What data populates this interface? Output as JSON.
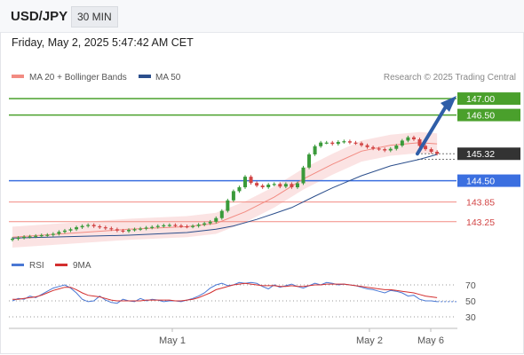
{
  "header": {
    "symbol": "USD/JPY",
    "timeframe": "30 MIN"
  },
  "timestamp": "Friday, May 2, 2025 5:47:42 AM CET",
  "legend": {
    "ma20": {
      "label": "MA 20 + Bollinger Bands",
      "color": "#f28b82"
    },
    "ma50": {
      "label": "MA 50",
      "color": "#2c4f8c"
    }
  },
  "source": "Research © 2025 Trading Central",
  "colors": {
    "up": "#3a9a3a",
    "down": "#d24545",
    "resistance": "#4aa02c",
    "support": "#3b6fe0",
    "pivot": "#f28b82",
    "rsi": "#4a78d4",
    "ma9": "#d32f2f",
    "band": "#fadcdc"
  },
  "chart_data": [
    {
      "type": "candlestick",
      "symbol": "USD/JPY",
      "ylim": [
        142.65,
        147.3
      ],
      "levels": [
        {
          "label": "147.00",
          "value": 147.0,
          "kind": "resistance"
        },
        {
          "label": "146.50",
          "value": 146.5,
          "kind": "resistance"
        },
        {
          "label": "144.50",
          "value": 144.5,
          "kind": "support"
        },
        {
          "label": "143.85",
          "value": 143.85,
          "kind": "pivot"
        },
        {
          "label": "143.25",
          "value": 143.25,
          "kind": "pivot"
        }
      ],
      "last_price": {
        "label": "145.32",
        "value": 145.32
      },
      "closes": [
        142.73,
        142.76,
        142.79,
        142.8,
        142.82,
        142.84,
        142.85,
        142.88,
        142.94,
        142.98,
        143.02,
        143.08,
        143.12,
        143.15,
        143.11,
        143.08,
        143.05,
        143.02,
        142.98,
        142.96,
        143.0,
        143.02,
        143.04,
        143.07,
        143.09,
        143.12,
        143.14,
        143.15,
        143.13,
        143.11,
        143.1,
        143.12,
        143.16,
        143.2,
        143.25,
        143.36,
        143.58,
        143.9,
        144.18,
        144.3,
        144.62,
        144.43,
        144.35,
        144.3,
        144.38,
        144.4,
        144.32,
        144.4,
        144.3,
        144.42,
        144.9,
        145.3,
        145.55,
        145.66,
        145.66,
        145.62,
        145.68,
        145.7,
        145.66,
        145.64,
        145.58,
        145.52,
        145.48,
        145.46,
        145.42,
        145.47,
        145.57,
        145.72,
        145.82,
        145.76,
        145.56,
        145.46,
        145.38,
        145.32
      ],
      "opens": [
        142.7,
        142.73,
        142.76,
        142.79,
        142.8,
        142.82,
        142.84,
        142.85,
        142.88,
        142.94,
        142.98,
        143.02,
        143.08,
        143.12,
        143.15,
        143.11,
        143.08,
        143.05,
        143.02,
        142.98,
        142.96,
        143.0,
        143.02,
        143.04,
        143.07,
        143.09,
        143.12,
        143.14,
        143.15,
        143.13,
        143.11,
        143.1,
        143.12,
        143.16,
        143.2,
        143.25,
        143.36,
        143.58,
        143.9,
        144.18,
        144.3,
        144.62,
        144.43,
        144.35,
        144.3,
        144.38,
        144.4,
        144.32,
        144.4,
        144.3,
        144.42,
        144.9,
        145.3,
        145.55,
        145.66,
        145.66,
        145.62,
        145.68,
        145.7,
        145.66,
        145.64,
        145.58,
        145.52,
        145.48,
        145.46,
        145.42,
        145.47,
        145.57,
        145.72,
        145.82,
        145.76,
        145.56,
        145.46,
        145.38
      ],
      "ma50_path": [
        [
          0,
          142.75
        ],
        [
          20,
          142.84
        ],
        [
          30,
          142.92
        ],
        [
          35,
          143.02
        ],
        [
          38,
          143.12
        ],
        [
          42,
          143.32
        ],
        [
          45,
          143.5
        ],
        [
          48,
          143.68
        ],
        [
          52,
          144.03
        ],
        [
          55,
          144.28
        ],
        [
          60,
          144.65
        ],
        [
          65,
          144.95
        ],
        [
          70,
          145.15
        ],
        [
          73,
          145.3
        ]
      ],
      "ma20_path": [
        [
          0,
          142.78
        ],
        [
          20,
          143.02
        ],
        [
          30,
          143.1
        ],
        [
          35,
          143.2
        ],
        [
          40,
          143.55
        ],
        [
          45,
          144.0
        ],
        [
          50,
          144.55
        ],
        [
          55,
          145.0
        ],
        [
          60,
          145.4
        ],
        [
          65,
          145.58
        ],
        [
          70,
          145.66
        ],
        [
          73,
          145.62
        ]
      ]
    },
    {
      "type": "line",
      "series": [
        {
          "name": "RSI"
        },
        {
          "name": "9MA"
        }
      ],
      "ylim": [
        20,
        80
      ],
      "yticks": [
        "70",
        "50",
        "30"
      ],
      "rsi": [
        50,
        53,
        52,
        56,
        54,
        58,
        62,
        66,
        68,
        70,
        66,
        60,
        52,
        49,
        50,
        56,
        51,
        48,
        47,
        52,
        50,
        49,
        53,
        50,
        52,
        51,
        49,
        50,
        50,
        49,
        51,
        53,
        56,
        60,
        66,
        70,
        72,
        69,
        70,
        73,
        72,
        73,
        72,
        68,
        65,
        70,
        67,
        69,
        71,
        68,
        66,
        69,
        72,
        70,
        73,
        72,
        70,
        71,
        70,
        69,
        67,
        65,
        64,
        62,
        60,
        63,
        62,
        60,
        56,
        57,
        52,
        50,
        50,
        49
      ],
      "ma9": [
        52,
        52,
        53,
        54,
        55,
        57,
        60,
        63,
        65,
        67,
        67,
        64,
        60,
        57,
        56,
        55,
        53,
        51,
        50,
        50,
        50,
        50,
        50,
        51,
        51,
        51,
        51,
        51,
        50,
        50,
        51,
        52,
        54,
        57,
        60,
        64,
        66,
        68,
        70,
        71,
        72,
        71,
        70,
        69,
        69,
        69,
        68,
        68,
        69,
        68,
        68,
        69,
        70,
        70,
        71,
        71,
        71,
        71,
        70,
        69,
        68,
        67,
        66,
        65,
        64,
        64,
        63,
        62,
        61,
        60,
        58,
        56,
        55,
        54
      ]
    }
  ],
  "xaxis": {
    "labels": [
      "May 1",
      "May 2",
      "May 6"
    ]
  }
}
